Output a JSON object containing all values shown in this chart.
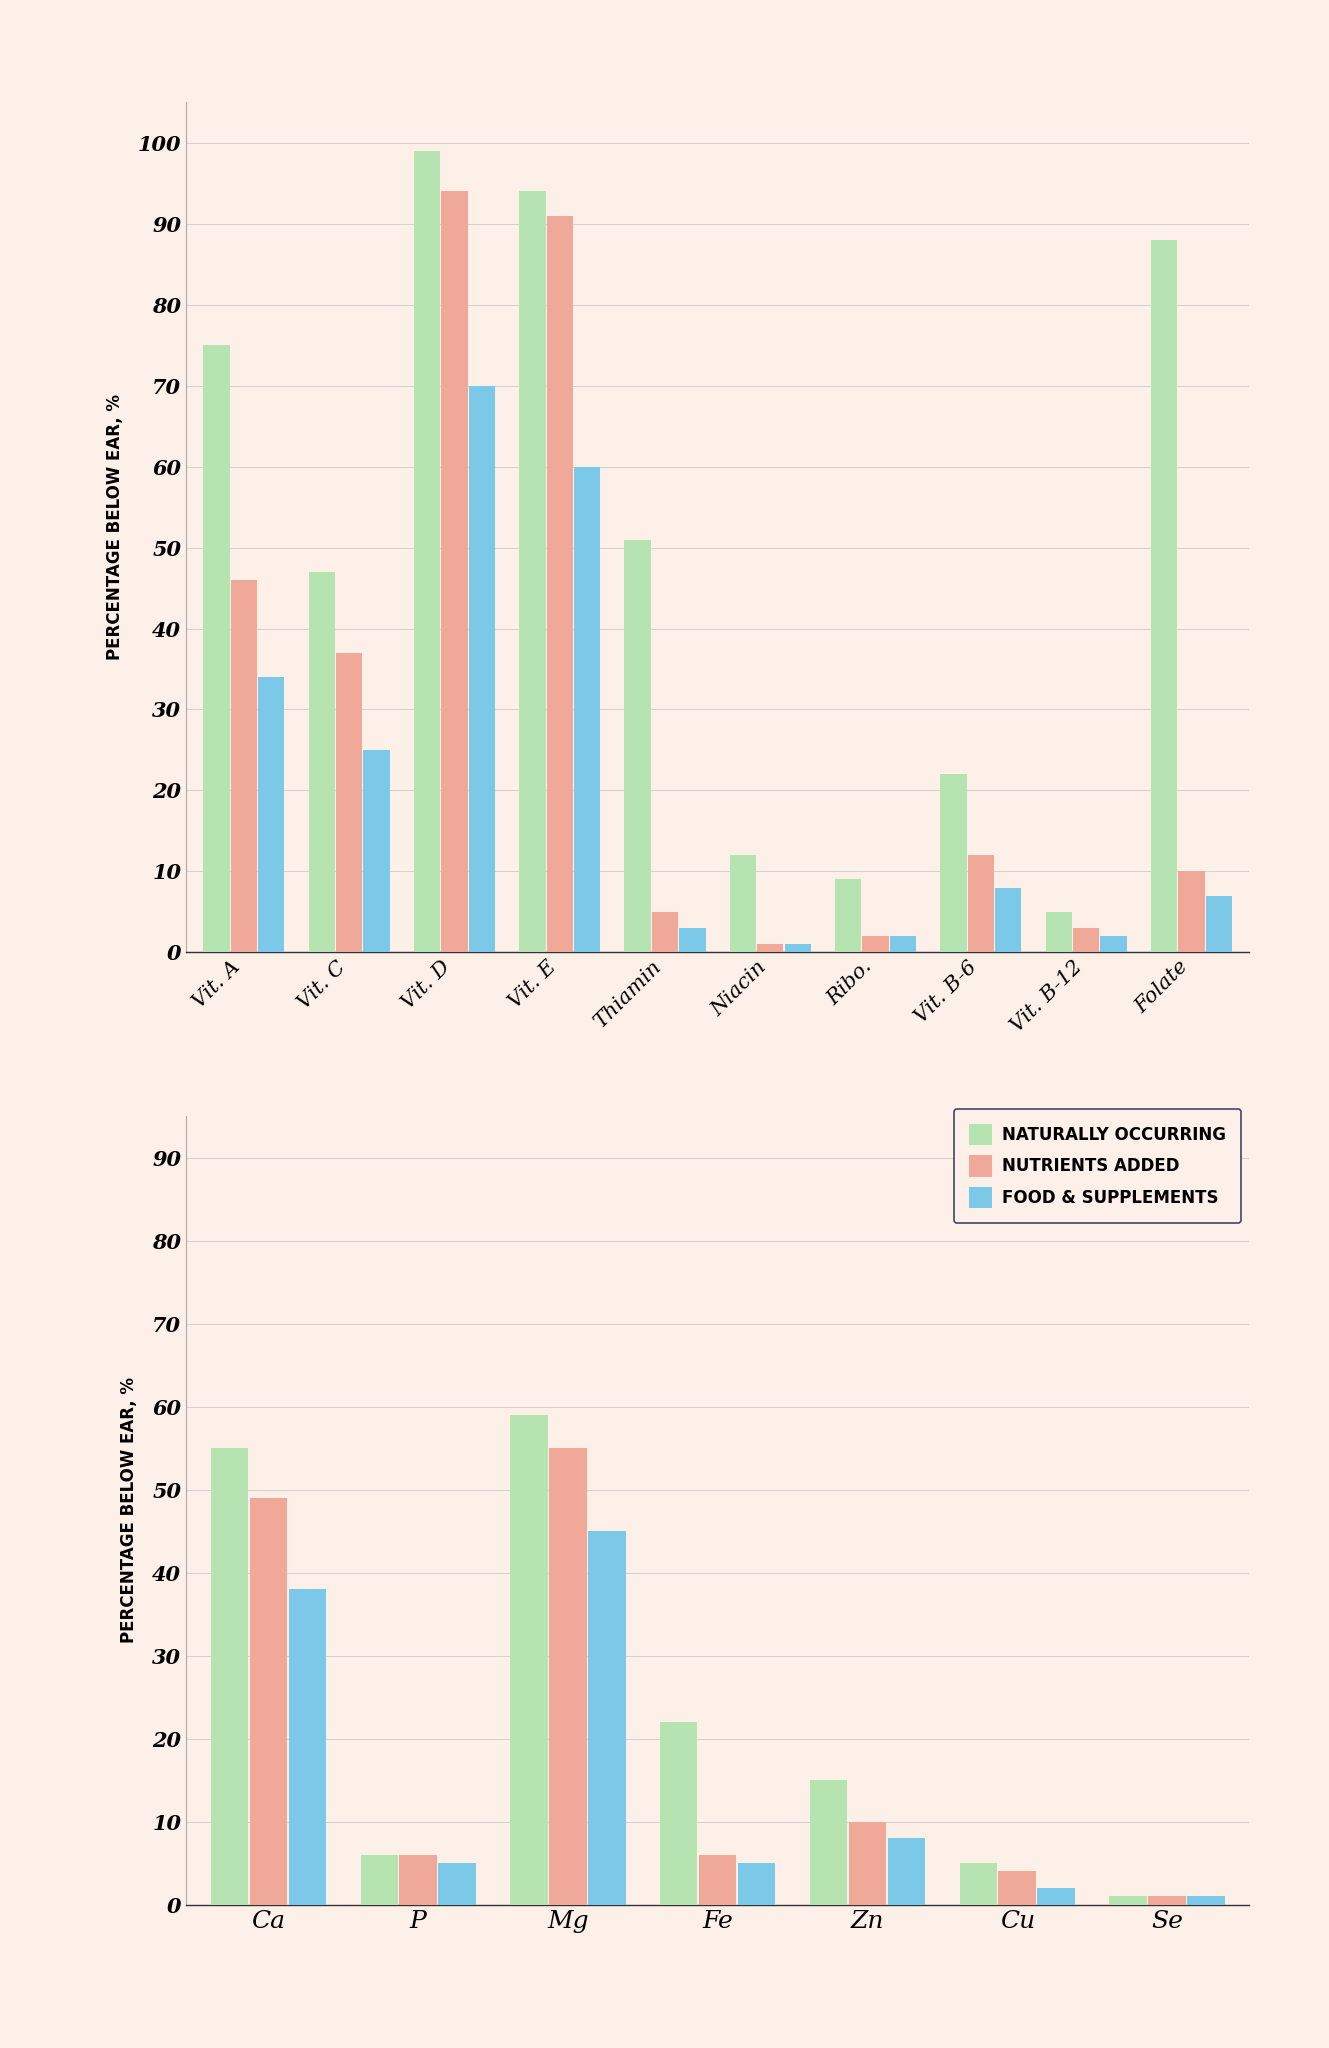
{
  "background_color": "#fdf0e8",
  "bar_colors": {
    "naturally": "#b5e4b0",
    "added": "#f0a898",
    "supplements": "#7bc8e8"
  },
  "chart1": {
    "categories": [
      "Vit. A",
      "Vit. C",
      "Vit. D",
      "Vit. E",
      "Thiamin",
      "Niacin",
      "Ribo.",
      "Vit. B-6",
      "Vit. B-12",
      "Folate"
    ],
    "naturally": [
      75,
      47,
      99,
      94,
      51,
      12,
      9,
      22,
      5,
      88
    ],
    "added": [
      46,
      37,
      94,
      91,
      5,
      1,
      2,
      12,
      3,
      10
    ],
    "supplements": [
      34,
      25,
      70,
      60,
      3,
      1,
      2,
      8,
      2,
      7
    ],
    "ylim": [
      0,
      105
    ],
    "yticks": [
      0,
      10,
      20,
      30,
      40,
      50,
      60,
      70,
      80,
      90,
      100
    ],
    "ylabel": "PERCENTAGE BELOW EAR, %"
  },
  "chart2": {
    "categories": [
      "Ca",
      "P",
      "Mg",
      "Fe",
      "Zn",
      "Cu",
      "Se"
    ],
    "naturally": [
      55,
      6,
      59,
      22,
      15,
      5,
      1
    ],
    "added": [
      49,
      6,
      55,
      6,
      10,
      4,
      1
    ],
    "supplements": [
      38,
      5,
      45,
      5,
      8,
      2,
      1
    ],
    "ylim": [
      0,
      95
    ],
    "yticks": [
      0,
      10,
      20,
      30,
      40,
      50,
      60,
      70,
      80,
      90
    ],
    "ylabel": "PERCENTAGE BELOW EAR, %"
  },
  "legend_labels": [
    "NATURALLY OCCURRING",
    "NUTRIENTS ADDED",
    "FOOD & SUPPLEMENTS"
  ],
  "bar_width": 0.25,
  "bar_gap": 0.01,
  "tick_fontsize": 15,
  "ylabel_fontsize": 12,
  "xtick_fontsize_chart2": 18
}
